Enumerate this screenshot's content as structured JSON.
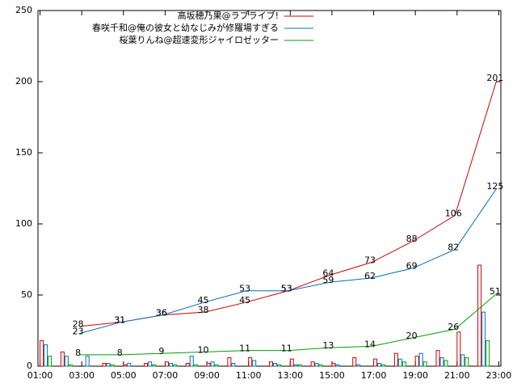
{
  "chart_data": [
    {
      "type": "line",
      "xlim": [
        0.9,
        23.1
      ],
      "xticks": [
        {
          "value": 1,
          "label": "01:00"
        },
        {
          "value": 3,
          "label": "03:00"
        },
        {
          "value": 5,
          "label": "05:00"
        },
        {
          "value": 7,
          "label": "07:00"
        },
        {
          "value": 9,
          "label": "09:00"
        },
        {
          "value": 11,
          "label": "11:00"
        },
        {
          "value": 13,
          "label": "13:00"
        },
        {
          "value": 15,
          "label": "15:00"
        },
        {
          "value": 17,
          "label": "17:00"
        },
        {
          "value": 19,
          "label": "19:00"
        },
        {
          "value": 21,
          "label": "21:00"
        },
        {
          "value": 23,
          "label": "23:00"
        }
      ],
      "ylim": [
        0,
        250
      ],
      "yticks": [
        0,
        50,
        100,
        150,
        200,
        250
      ],
      "x": [
        2.9,
        4.9,
        6.9,
        8.9,
        10.9,
        12.9,
        14.9,
        16.9,
        18.9,
        20.9,
        22.9
      ],
      "series": [
        {
          "name": "高坂穂乃果@ラブライブ!",
          "color": "#cc0000",
          "values": [
            28,
            31,
            36,
            38,
            45,
            53,
            64,
            73,
            88,
            106,
            201
          ]
        },
        {
          "name": "春咲千和@俺の彼女と幼なじみが修羅場すぎる",
          "color": "#0070c0",
          "values": [
            23,
            31,
            36,
            45,
            53,
            53,
            59,
            62,
            69,
            82,
            125
          ]
        },
        {
          "name": "桜葉りんね@超速変形ジャイロゼッター",
          "color": "#00a000",
          "values": [
            8,
            8,
            9,
            10,
            11,
            11,
            13,
            14,
            20,
            26,
            51
          ]
        }
      ]
    },
    {
      "type": "bar",
      "x": [
        1,
        2,
        3,
        4,
        5,
        6,
        7,
        8,
        9,
        10,
        11,
        12,
        13,
        14,
        15,
        16,
        17,
        18,
        19,
        20,
        21,
        22
      ],
      "series": [
        {
          "values": [
            18,
            10,
            0,
            2,
            1,
            2,
            3,
            2,
            2,
            6,
            6,
            3,
            5,
            3,
            2,
            6,
            5,
            9,
            7,
            11,
            24,
            71
          ]
        },
        {
          "values": [
            15,
            7,
            7,
            2,
            2,
            3,
            2,
            7,
            3,
            2,
            4,
            2,
            1,
            2,
            1,
            1,
            2,
            5,
            9,
            6,
            8,
            38
          ]
        },
        {
          "values": [
            7,
            1,
            0,
            1,
            0,
            1,
            1,
            1,
            1,
            0,
            0,
            1,
            1,
            1,
            0,
            0,
            1,
            3,
            3,
            4,
            6,
            18
          ]
        }
      ]
    }
  ]
}
